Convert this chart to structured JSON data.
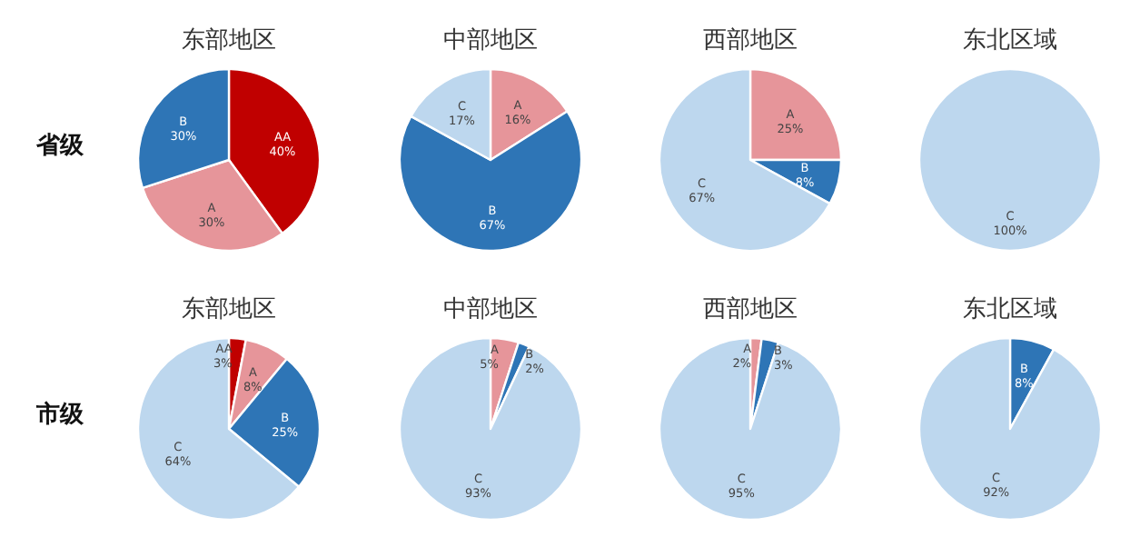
{
  "chart_data": [
    {
      "type": "pie",
      "title": "东部地区",
      "annotations": [
        "省级"
      ],
      "categories": [
        "AA",
        "A",
        "B"
      ],
      "values": [
        40,
        30,
        30
      ],
      "colors": [
        "#c00000",
        "#e6959a",
        "#2e75b6"
      ],
      "value_labels": [
        "40%",
        "30%",
        "30%"
      ]
    },
    {
      "type": "pie",
      "title": "中部地区",
      "categories": [
        "A",
        "B",
        "C"
      ],
      "values": [
        16,
        67,
        17
      ],
      "colors": [
        "#e6959a",
        "#2e75b6",
        "#bdd7ee"
      ],
      "value_labels": [
        "16%",
        "67%",
        "17%"
      ]
    },
    {
      "type": "pie",
      "title": "西部地区",
      "categories": [
        "A",
        "B",
        "C"
      ],
      "values": [
        25,
        8,
        67
      ],
      "colors": [
        "#e6959a",
        "#2e75b6",
        "#bdd7ee"
      ],
      "value_labels": [
        "25%",
        "8%",
        "67%"
      ]
    },
    {
      "type": "pie",
      "title": "东北区域",
      "categories": [
        "C"
      ],
      "values": [
        100
      ],
      "colors": [
        "#bdd7ee"
      ],
      "value_labels": [
        "100%"
      ]
    },
    {
      "type": "pie",
      "title": "东部地区",
      "annotations": [
        "市级"
      ],
      "categories": [
        "AA",
        "A",
        "B",
        "C"
      ],
      "values": [
        3,
        8,
        25,
        64
      ],
      "colors": [
        "#c00000",
        "#e6959a",
        "#2e75b6",
        "#bdd7ee"
      ],
      "value_labels": [
        "3%",
        "8%",
        "25%",
        "64%"
      ]
    },
    {
      "type": "pie",
      "title": "中部地区",
      "categories": [
        "A",
        "B",
        "C"
      ],
      "values": [
        5,
        2,
        93
      ],
      "colors": [
        "#e6959a",
        "#2e75b6",
        "#bdd7ee"
      ],
      "value_labels": [
        "5%",
        "2%",
        "93%"
      ]
    },
    {
      "type": "pie",
      "title": "西部地区",
      "categories": [
        "A",
        "B",
        "C"
      ],
      "values": [
        2,
        3,
        95
      ],
      "colors": [
        "#e6959a",
        "#2e75b6",
        "#bdd7ee"
      ],
      "value_labels": [
        "2%",
        "3%",
        "95%"
      ]
    },
    {
      "type": "pie",
      "title": "东北区域",
      "categories": [
        "B",
        "C"
      ],
      "values": [
        8,
        92
      ],
      "colors": [
        "#2e75b6",
        "#bdd7ee"
      ],
      "value_labels": [
        "8%",
        "92%"
      ]
    }
  ]
}
